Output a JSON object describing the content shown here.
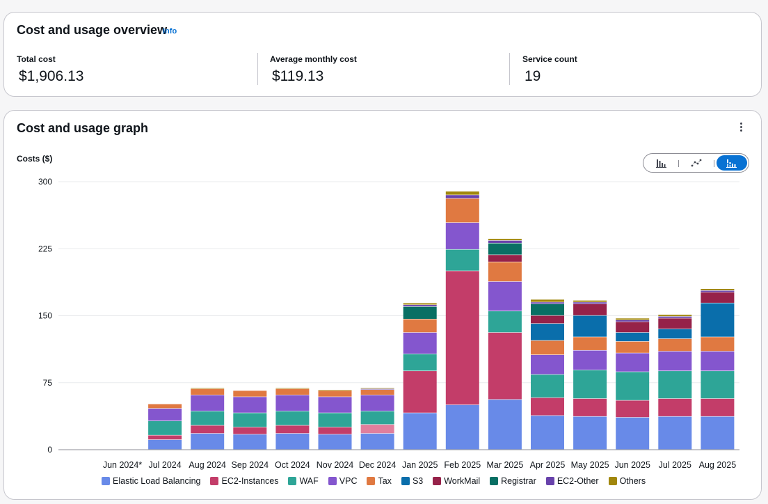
{
  "overview": {
    "title": "Cost and usage overview",
    "info_label": "Info",
    "metrics": [
      {
        "label": "Total cost",
        "value": "$1,906.13"
      },
      {
        "label": "Average monthly cost",
        "value": "$119.13"
      },
      {
        "label": "Service count",
        "value": "19"
      }
    ]
  },
  "graph": {
    "title": "Cost and usage graph",
    "menu_icon": "kebab-menu-icon",
    "toggle_icons": [
      "bar-chart-icon",
      "line-chart-icon",
      "stacked-bar-chart-icon"
    ],
    "toggle_selected": "stacked-bar-chart-icon"
  },
  "chart_data": {
    "type": "bar",
    "stacked": true,
    "title": "",
    "xlabel": "",
    "ylabel": "Costs ($)",
    "ylim": [
      0,
      300
    ],
    "yticks": [
      0,
      75,
      150,
      225,
      300
    ],
    "grid": true,
    "legend_position": "bottom",
    "categories": [
      "Jun 2024*",
      "Jul 2024",
      "Aug 2024",
      "Sep 2024",
      "Oct 2024",
      "Nov 2024",
      "Dec 2024",
      "Jan 2025",
      "Feb 2025",
      "Mar 2025",
      "Apr 2025",
      "May 2025",
      "Jun 2025",
      "Jul 2025",
      "Aug 2025"
    ],
    "series": [
      {
        "name": "Elastic Load Balancing",
        "color": "#688ae8",
        "values": [
          0,
          11,
          18,
          17,
          18,
          17,
          18,
          41,
          50,
          56,
          38,
          37,
          36,
          37,
          37
        ]
      },
      {
        "name": "EC2-Instances",
        "color": "#c33d69",
        "values": [
          0,
          5,
          9,
          8,
          9,
          8,
          0,
          47,
          150,
          75,
          20,
          20,
          19,
          20,
          20
        ]
      },
      {
        "name": "WAF",
        "color": "#2ea597",
        "values": [
          0,
          16,
          16,
          16,
          16,
          16,
          15,
          19,
          24,
          24,
          26,
          32,
          32,
          31,
          31
        ]
      },
      {
        "name": "VPC",
        "color": "#8456ce",
        "values": [
          0,
          14,
          18,
          18,
          18,
          18,
          18,
          24,
          30,
          33,
          22,
          22,
          21,
          22,
          22
        ]
      },
      {
        "name": "Tax",
        "color": "#e07941",
        "values": [
          0,
          5,
          7,
          7,
          7,
          7,
          6,
          15,
          27,
          22,
          16,
          15,
          13,
          14,
          16
        ]
      },
      {
        "name": "S3",
        "color": "#0a6eab",
        "values": [
          0,
          0,
          0,
          0,
          0,
          0,
          0,
          0,
          0,
          0,
          19,
          24,
          10,
          11,
          38
        ]
      },
      {
        "name": "WorkMail",
        "color": "#962249",
        "values": [
          0,
          0,
          0,
          0,
          0,
          0,
          0,
          0,
          0,
          8,
          9,
          13,
          12,
          12,
          12
        ]
      },
      {
        "name": "Registrar",
        "color": "#096f64",
        "values": [
          0,
          0,
          0,
          0,
          0,
          0,
          0,
          14,
          0,
          13,
          13,
          0,
          0,
          0,
          0
        ]
      },
      {
        "name": "EC2-Other",
        "color": "#6842ab",
        "values": [
          0,
          0,
          0,
          0,
          0,
          0,
          1,
          2,
          4,
          3,
          2,
          2,
          2,
          2,
          2
        ]
      },
      {
        "name": "Others",
        "color": "#a1870c",
        "values": [
          0,
          0,
          1,
          0,
          1,
          1,
          1,
          2,
          4,
          2,
          3,
          2,
          2,
          2,
          2
        ]
      }
    ],
    "extra_segments": [
      {
        "category": "Dec 2024",
        "after_series": "Elastic Load Balancing",
        "value": 10,
        "color": "#e07f9d"
      }
    ]
  }
}
